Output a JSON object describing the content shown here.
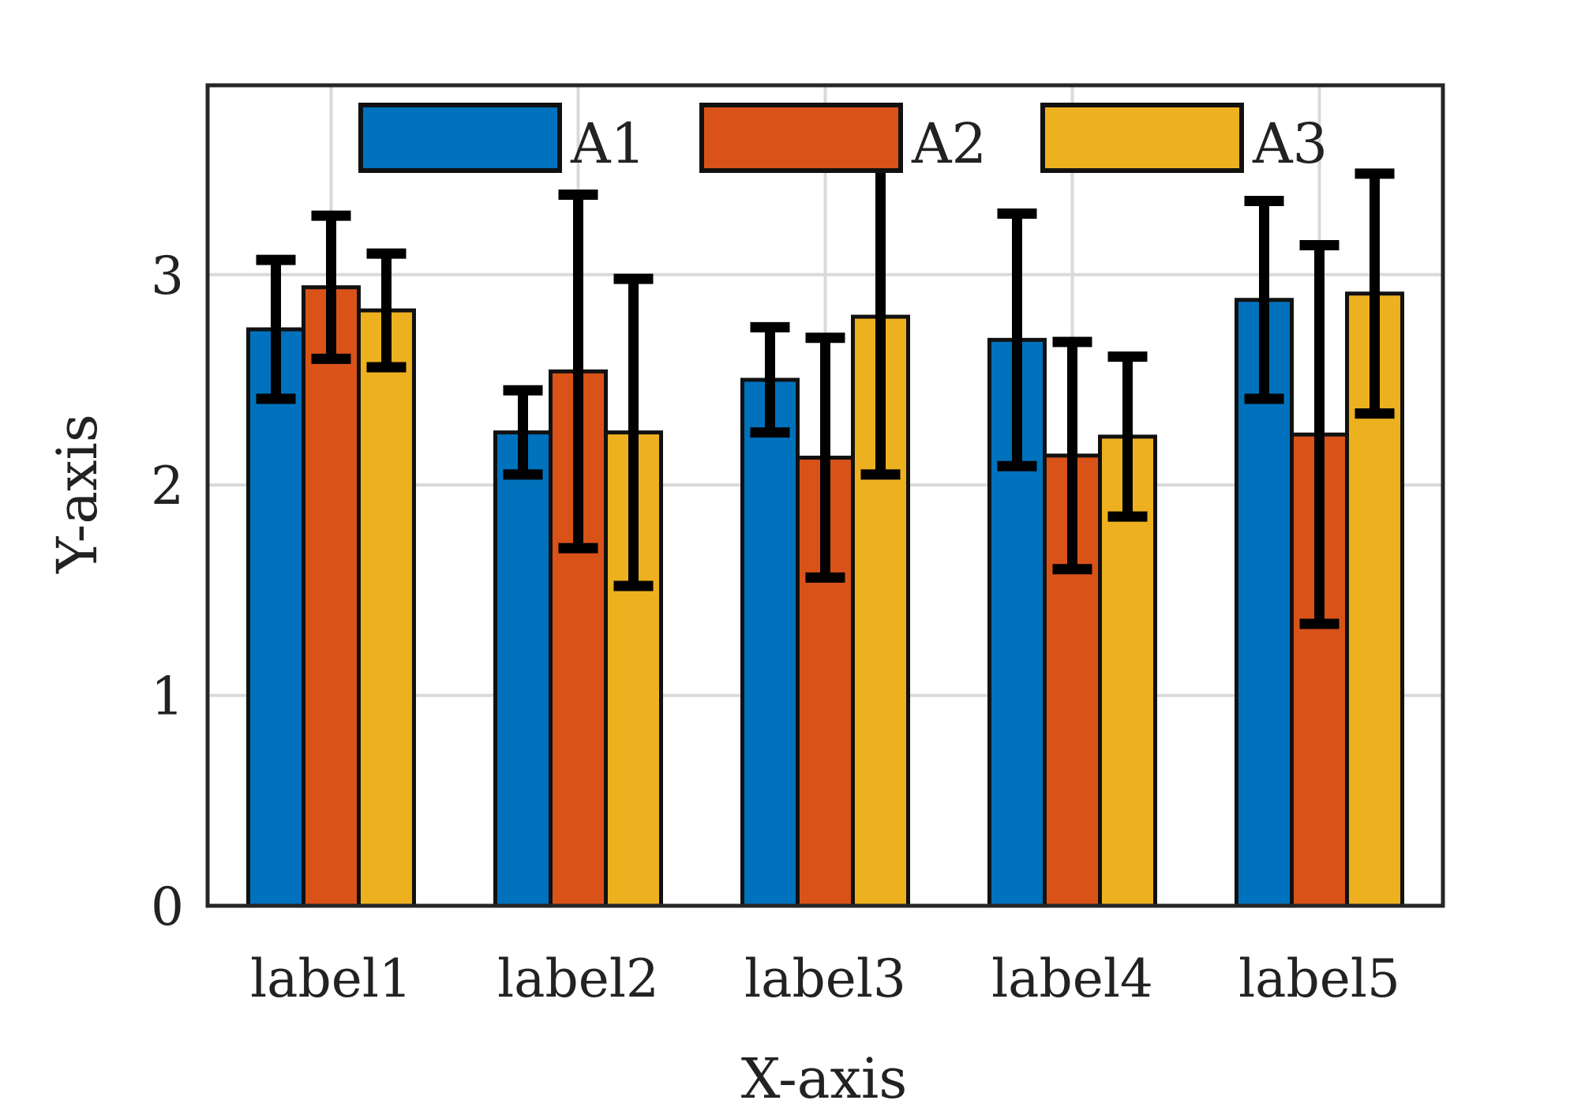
{
  "chart_data": {
    "type": "bar",
    "title": "",
    "xlabel": "X-axis",
    "ylabel": "Y-axis",
    "categories": [
      "label1",
      "label2",
      "label3",
      "label4",
      "label5"
    ],
    "ylim": [
      0,
      3.9
    ],
    "yticks": [
      0,
      1,
      2,
      3
    ],
    "grid": true,
    "legend": {
      "position": "top",
      "orientation": "horizontal"
    },
    "error_bars": true,
    "series": [
      {
        "name": "A1",
        "color": "#0072BD",
        "values": [
          2.74,
          2.25,
          2.5,
          2.69,
          2.88
        ],
        "errors": [
          0.33,
          0.2,
          0.25,
          0.6,
          0.47
        ]
      },
      {
        "name": "A2",
        "color": "#D95319",
        "values": [
          2.94,
          2.54,
          2.13,
          2.14,
          2.24
        ],
        "errors": [
          0.34,
          0.84,
          0.57,
          0.54,
          0.9
        ]
      },
      {
        "name": "A3",
        "color": "#EDB120",
        "values": [
          2.83,
          2.25,
          2.8,
          2.23,
          2.91
        ],
        "errors": [
          0.27,
          0.73,
          0.75,
          0.38,
          0.57
        ]
      }
    ]
  }
}
